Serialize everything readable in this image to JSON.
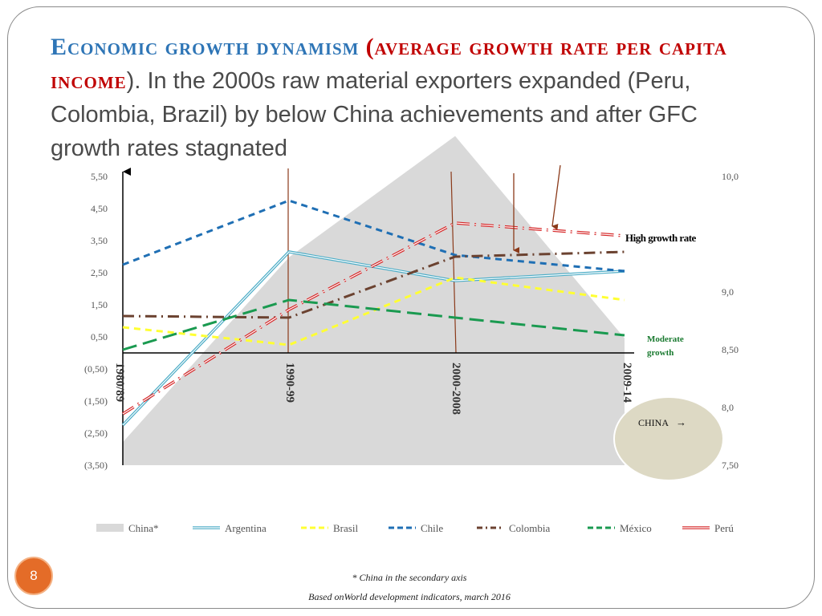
{
  "slide": {
    "title_part1": "Economic growth dynamism",
    "title_part2": "(average growth rate per capita income",
    "title_part3": "). In the 2000s raw material exporters expanded (Peru, Colombia, Brazil)  by below China achievements and after GFC  growth rates stagnated",
    "page_number": "8",
    "footnote1": "* China in the secondary axis",
    "footnote2": "Based onWorld development indicators, march  2016"
  },
  "annotations": {
    "high_growth": "High growth  rate",
    "moderate_growth": "Moderate growth",
    "china_callout": "CHINA",
    "china_arrow": "→"
  },
  "chart_data": {
    "type": "line",
    "categories": [
      "1980/89",
      "1990-99",
      "2000-2008",
      "2009-14"
    ],
    "y_ticks": [
      "5,50",
      "4,50",
      "3,50",
      "2,50",
      "1,50",
      "0,50",
      "(0,50)",
      "(1,50)",
      "(2,50)",
      "(3,50)"
    ],
    "y2_ticks": [
      "10,0",
      "9,0",
      "8,50",
      "8,0",
      "7,50"
    ],
    "ylim": [
      -3.5,
      5.5
    ],
    "y2lim": [
      7.5,
      10.0
    ],
    "series": [
      {
        "name": "China*",
        "axis": "secondary",
        "type": "area",
        "color": "#d9d9d9",
        "values": [
          7.7,
          9.3,
          10.35,
          8.6
        ]
      },
      {
        "name": "Argentina",
        "color": "#4bacc6",
        "style": "double",
        "values": [
          -2.25,
          3.15,
          2.25,
          2.55
        ]
      },
      {
        "name": "Brasil",
        "color": "#ffff33",
        "style": "dash",
        "values": [
          0.8,
          0.25,
          2.35,
          1.65
        ]
      },
      {
        "name": "Chile",
        "color": "#1f6fb4",
        "style": "dash",
        "values": [
          2.75,
          4.75,
          3.05,
          2.55
        ]
      },
      {
        "name": "Colombia",
        "color": "#6b4230",
        "style": "dashdot",
        "values": [
          1.15,
          1.1,
          3.0,
          3.15
        ]
      },
      {
        "name": "México",
        "color": "#1a9a50",
        "style": "longdash",
        "values": [
          0.1,
          1.65,
          1.1,
          0.55
        ]
      },
      {
        "name": "Perú",
        "color": "#d62728",
        "style": "dashdot-double",
        "values": [
          -1.9,
          1.35,
          4.05,
          3.65
        ]
      }
    ]
  }
}
